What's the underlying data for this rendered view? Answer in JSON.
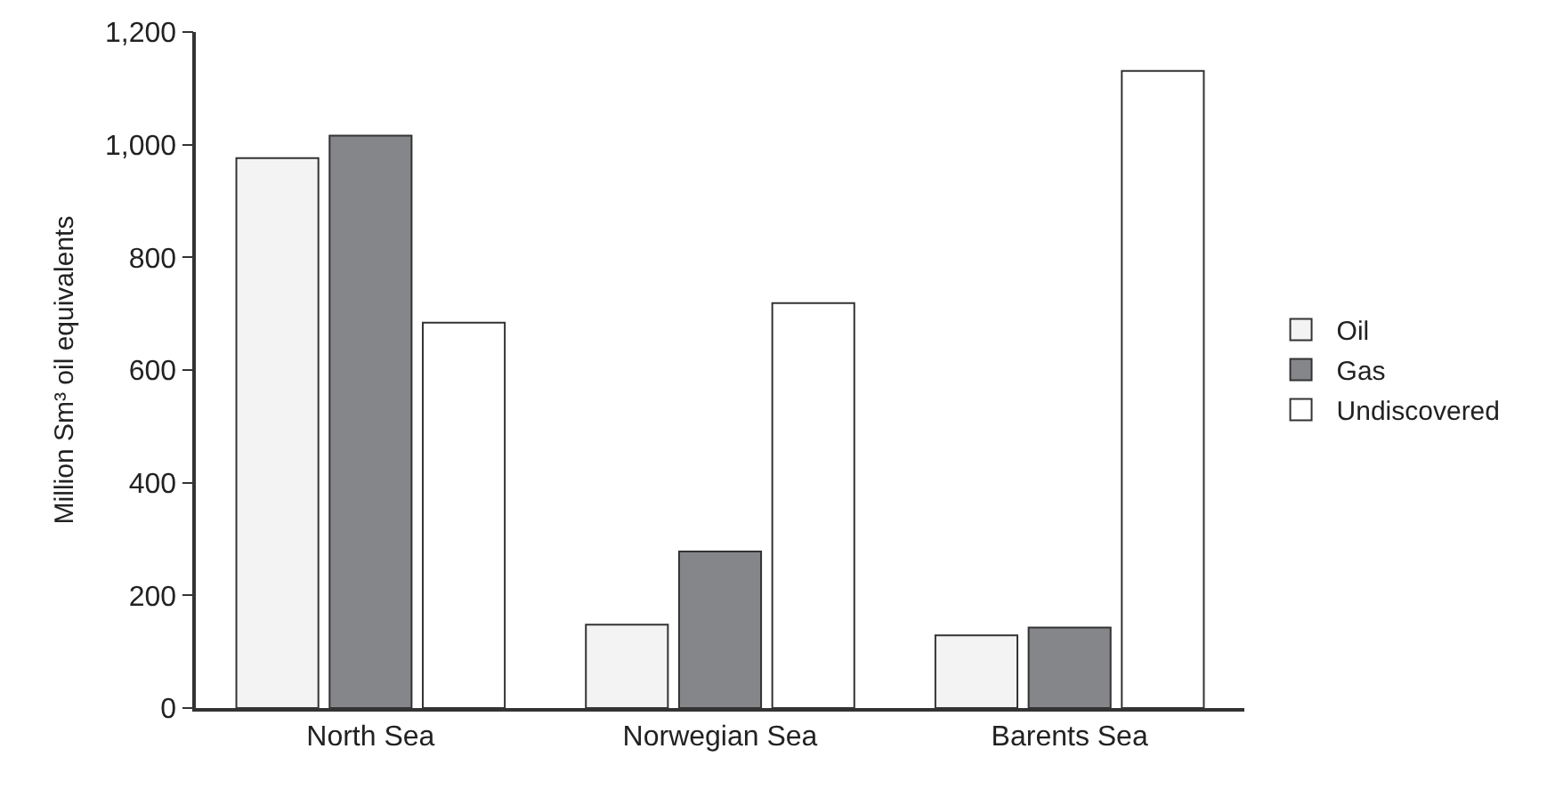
{
  "chart_data": {
    "type": "bar",
    "ylabel": "Million Sm³ oil equivalents",
    "categories": [
      "North Sea",
      "Norwegian Sea",
      "Barents Sea"
    ],
    "series": [
      {
        "name": "Oil",
        "color": "#f2f3f2",
        "values": [
          976,
          148,
          129
        ]
      },
      {
        "name": "Gas",
        "color": "#858689",
        "values": [
          1016,
          278,
          143
        ]
      },
      {
        "name": "Undiscovered",
        "color": "#ffffff",
        "values": [
          684,
          719,
          1131
        ]
      }
    ],
    "ylim": [
      0,
      1200
    ],
    "yticks": [
      {
        "value": 0,
        "label": "0"
      },
      {
        "value": 200,
        "label": "200"
      },
      {
        "value": 400,
        "label": "400"
      },
      {
        "value": 600,
        "label": "600"
      },
      {
        "value": 800,
        "label": "800"
      },
      {
        "value": 1000,
        "label": "1,000"
      },
      {
        "value": 1200,
        "label": "1,200"
      }
    ],
    "grid": false,
    "legend": "right"
  }
}
